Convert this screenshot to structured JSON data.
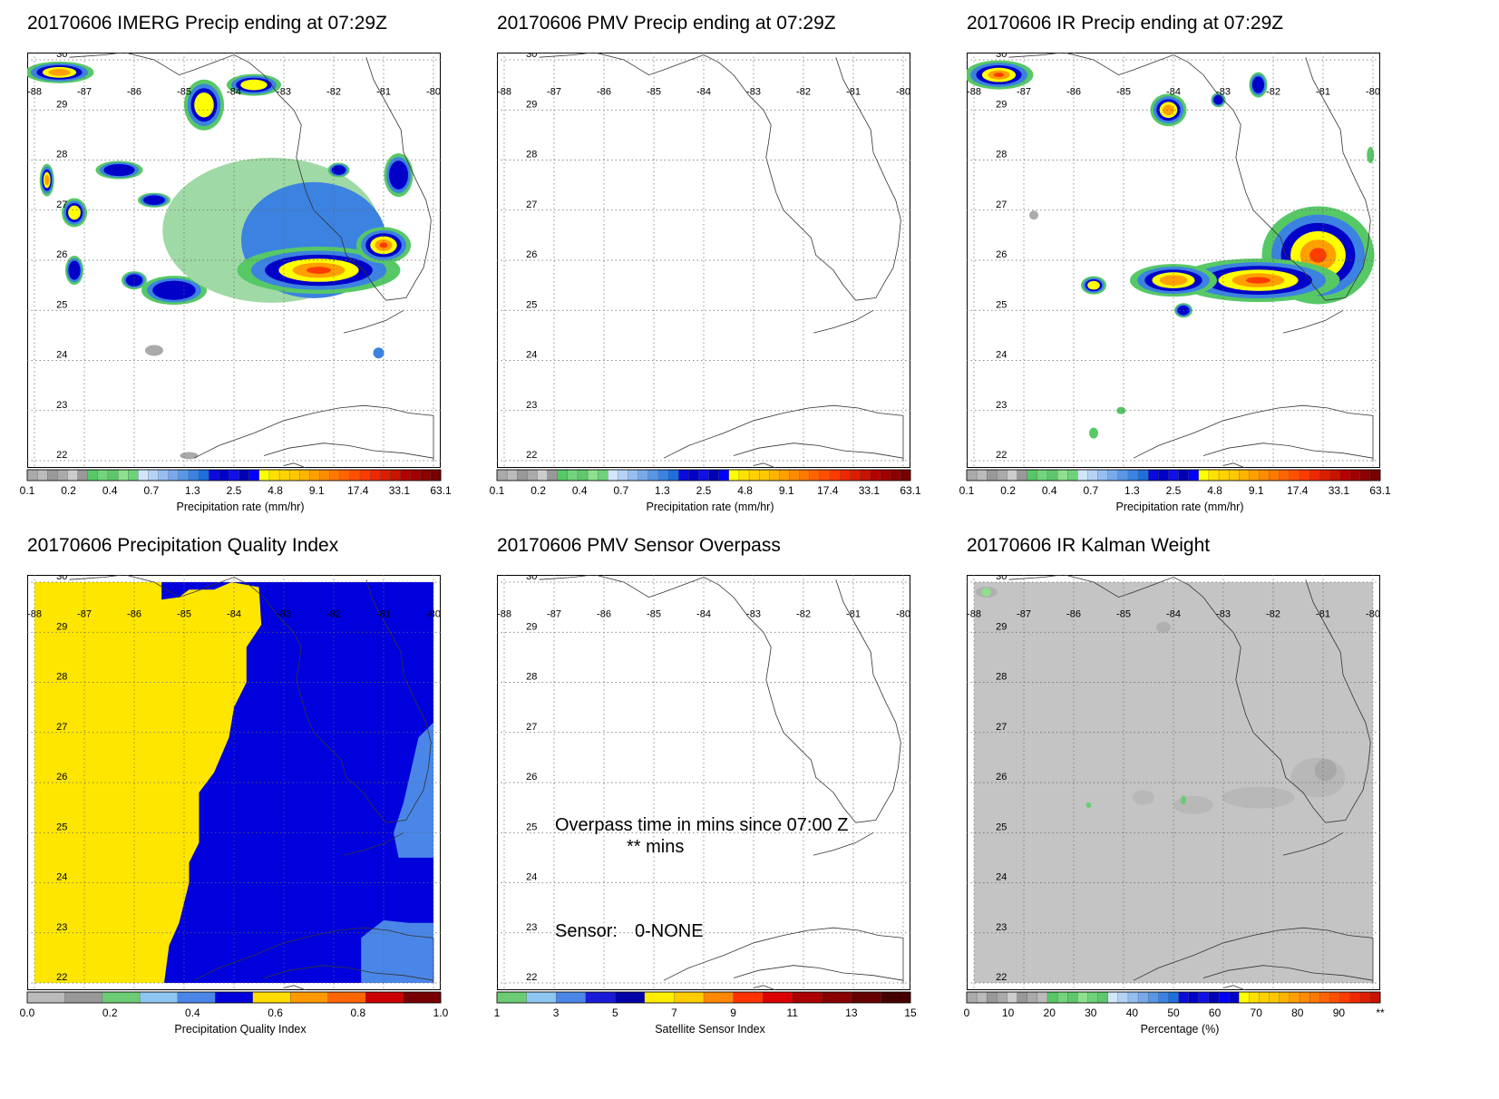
{
  "date": "20170606",
  "panels": [
    {
      "id": "imerg",
      "title": "20170606 IMERG Precip ending at 07:29Z",
      "colorbar": "precip",
      "colorbar_label": "Precipitation rate (mm/hr)",
      "field": "imerg"
    },
    {
      "id": "pmv",
      "title": "20170606 PMV Precip ending at 07:29Z",
      "colorbar": "precip",
      "colorbar_label": "Precipitation rate (mm/hr)",
      "field": "none"
    },
    {
      "id": "ir",
      "title": "20170606 IR Precip ending at 07:29Z",
      "colorbar": "precip",
      "colorbar_label": "Precipitation rate (mm/hr)",
      "field": "ir"
    },
    {
      "id": "pqi",
      "title": "20170606 Precipitation Quality Index",
      "colorbar": "quality",
      "colorbar_label": "Precipitation Quality Index",
      "field": "pqi"
    },
    {
      "id": "overpass",
      "title": "20170606 PMV Sensor Overpass",
      "colorbar": "sensor",
      "colorbar_label": "Satellite Sensor Index",
      "field": "none",
      "overlay": {
        "line1": "Overpass time in mins since 07:00 Z",
        "line2": "** mins",
        "sensor_label": "Sensor:",
        "sensor_value": "0-NONE"
      }
    },
    {
      "id": "kalman",
      "title": "20170606 IR Kalman Weight",
      "colorbar": "percent",
      "colorbar_label": "Percentage (%)",
      "field": "kalman"
    }
  ],
  "map_axes": {
    "lon_range": [
      -88,
      -80
    ],
    "lat_range": [
      22,
      30
    ],
    "lon_labels": [
      "-88",
      "-87",
      "-86",
      "-85",
      "-84",
      "-83",
      "-82",
      "-81",
      "-80"
    ],
    "lat_labels": [
      "30",
      "29",
      "28",
      "27",
      "26",
      "25",
      "24",
      "23",
      "22"
    ],
    "grid": "dotted"
  },
  "colorbars": {
    "precip": {
      "colors": [
        "#aaaaaa",
        "#bbbbbb",
        "#999999",
        "#aaaaaa",
        "#cccccc",
        "#999999",
        "#56c866",
        "#73d47e",
        "#5ec76c",
        "#8ee08f",
        "#6ed27a",
        "#d2e6fa",
        "#b4d2f5",
        "#96bef0",
        "#78aaeb",
        "#5a96e6",
        "#3c82e1",
        "#1e6edc",
        "#0a0adc",
        "#0000c8",
        "#1010e8",
        "#0000b4",
        "#0000ff",
        "#ffff00",
        "#ffe100",
        "#ffd200",
        "#ffc800",
        "#ffb400",
        "#ffa000",
        "#ff8c00",
        "#ff7800",
        "#ff6400",
        "#ff5000",
        "#ff3c00",
        "#f02800",
        "#dc1e00",
        "#c81400",
        "#b40000",
        "#a00000",
        "#8c0000",
        "#780000"
      ],
      "labels": [
        "0.1",
        "0.2",
        "0.4",
        "0.7",
        "1.3",
        "2.5",
        "4.8",
        "9.1",
        "17.4",
        "33.1",
        "63.1"
      ]
    },
    "quality": {
      "colors": [
        "#bbbbbb",
        "#999999",
        "#6ccc74",
        "#8ec6f2",
        "#4a86e8",
        "#0000dc",
        "#ffdd00",
        "#ff9900",
        "#ff6600",
        "#cc0000",
        "#770000"
      ],
      "labels": [
        "0.0",
        "0.2",
        "0.4",
        "0.6",
        "0.8",
        "1.0"
      ]
    },
    "sensor": {
      "colors": [
        "#6ccc74",
        "#8ec6f2",
        "#4a86e8",
        "#1a1ad8",
        "#0000a8",
        "#ffee00",
        "#ffcc00",
        "#ff8800",
        "#ff3300",
        "#dd0000",
        "#aa0000",
        "#880000",
        "#660000",
        "#440000"
      ],
      "labels": [
        "1",
        "3",
        "5",
        "7",
        "9",
        "11",
        "13",
        "15"
      ]
    },
    "percent": {
      "colors": [
        "#aaaaaa",
        "#bbbbbb",
        "#999999",
        "#aaaaaa",
        "#cccccc",
        "#999999",
        "#aaaaaa",
        "#bbbbbb",
        "#56c866",
        "#73d47e",
        "#5ec76c",
        "#8ee08f",
        "#6ed27a",
        "#5ec76c",
        "#d2e6fa",
        "#b4d2f5",
        "#96bef0",
        "#78aaeb",
        "#5a96e6",
        "#3c82e1",
        "#1e6edc",
        "#0a0adc",
        "#0000c8",
        "#1010e8",
        "#0000b4",
        "#0000ff",
        "#0000c8",
        "#ffff00",
        "#ffe100",
        "#ffd200",
        "#ffc800",
        "#ffb400",
        "#ffa000",
        "#ff8c00",
        "#ff7800",
        "#ff6400",
        "#ff5000",
        "#ff3c00",
        "#f02800",
        "#dc1e00",
        "#c81400"
      ],
      "labels": [
        "0",
        "10",
        "20",
        "30",
        "40",
        "50",
        "60",
        "70",
        "80",
        "90",
        "**"
      ]
    }
  }
}
